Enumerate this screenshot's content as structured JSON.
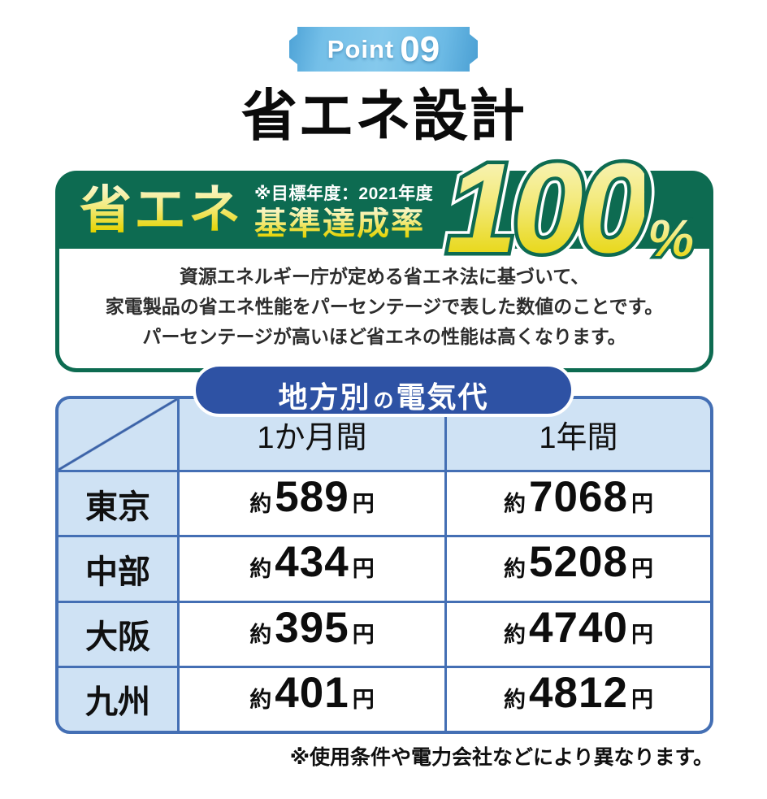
{
  "badge": {
    "word": "Point",
    "number": "09"
  },
  "title": "省エネ設計",
  "banner": {
    "headline": "省エネ",
    "note": "※目標年度：2021年度",
    "subheadline": "基準達成率",
    "value": "100",
    "unit": "%",
    "description_lines": [
      "資源エネルギー庁が定める省エネ法に基づいて、",
      "家電製品の省エネ性能をパーセンテージで表した数値のことです。",
      "パーセンテージが高いほど省エネの性能は高くなります。"
    ],
    "colors": {
      "green": "#0d6b51",
      "yellow": "#e5d300"
    }
  },
  "table": {
    "title_part1": "地方別",
    "title_particle": "の",
    "title_part2": "電気代",
    "columns": [
      "1か月間",
      "1年間"
    ],
    "value_prefix": "約",
    "value_suffix": "円",
    "rows": [
      {
        "region": "東京",
        "month": "589",
        "year": "7068"
      },
      {
        "region": "中部",
        "month": "434",
        "year": "5208"
      },
      {
        "region": "大阪",
        "month": "395",
        "year": "4740"
      },
      {
        "region": "九州",
        "month": "401",
        "year": "4812"
      }
    ],
    "colors": {
      "border": "#446fb4",
      "header_bg": "#cfe2f4",
      "pill_bg": "#2e52a4",
      "badge_blue": "#74bfe8"
    }
  },
  "footnote": "※使用条件や電力会社などにより異なります。"
}
